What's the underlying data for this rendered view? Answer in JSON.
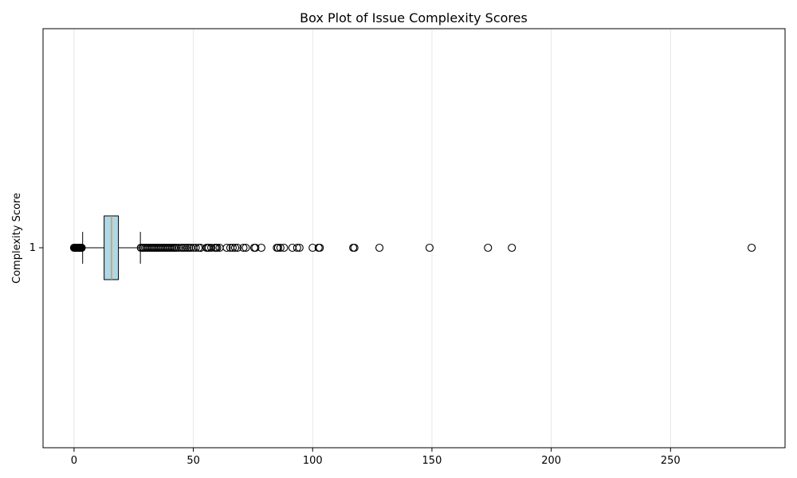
{
  "chart_data": {
    "type": "boxplot",
    "orientation": "horizontal",
    "title": "Box Plot of Issue Complexity Scores",
    "xlabel": "",
    "ylabel": "Complexity Score",
    "xlim": [
      -13,
      298
    ],
    "x_ticks": [
      0,
      50,
      100,
      150,
      200,
      250
    ],
    "y_ticks": [
      1
    ],
    "grid": {
      "x": true,
      "y": false
    },
    "colors": {
      "box_fill": "#add8e6",
      "median": "#ff7f0e",
      "grid": "#e6e6e6"
    },
    "box": {
      "position": 1,
      "q1": 12.6,
      "median": 15.7,
      "q3": 18.6,
      "whisker_low": 3.6,
      "whisker_high": 27.8
    },
    "outliers_low": [
      0.0,
      0.2,
      0.4,
      0.6,
      0.8,
      1.0,
      1.2,
      1.4,
      1.6,
      1.8,
      2.0,
      2.2,
      2.4,
      2.6,
      2.8,
      3.0,
      3.2
    ],
    "outliers_high": [
      28.0,
      28.6,
      29.2,
      29.8,
      30.4,
      31.0,
      31.6,
      32.2,
      32.8,
      33.4,
      34.0,
      34.6,
      35.2,
      35.8,
      36.4,
      37.0,
      37.6,
      38.2,
      38.8,
      39.4,
      40.0,
      40.6,
      41.2,
      41.8,
      42.4,
      43.0,
      44.0,
      45.0,
      45.8,
      46.6,
      47.4,
      48.2,
      49.0,
      50.0,
      51.0,
      52.2,
      53.0,
      55.5,
      56.0,
      56.5,
      57.5,
      59.0,
      59.5,
      60.0,
      61.0,
      64.0,
      65.5,
      66.5,
      67.5,
      68.5,
      71.0,
      72.0,
      75.5,
      76.0,
      78.5,
      85.0,
      85.5,
      86.5,
      88.0,
      91.5,
      93.5,
      94.5,
      100.0,
      102.5,
      103.0,
      117.0,
      117.5,
      128.0,
      149.0,
      173.5,
      183.5,
      284.0
    ]
  }
}
